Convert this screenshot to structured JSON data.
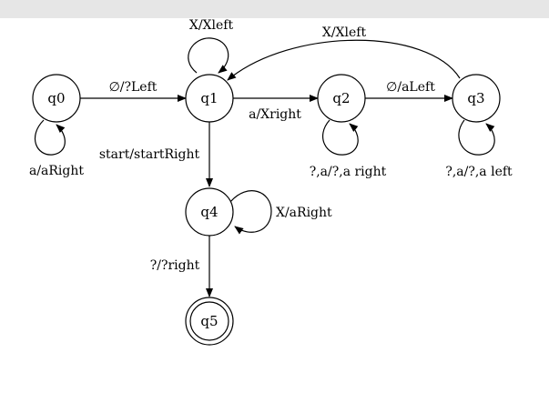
{
  "diagram": {
    "states": {
      "q0": "q0",
      "q1": "q1",
      "q2": "q2",
      "q3": "q3",
      "q4": "q4",
      "q5": "q5"
    },
    "accepting_state": "q5",
    "transitions": {
      "q0_q0": "a/aRight",
      "q0_q1": "∅/?Left",
      "q1_q1": "X/Xleft",
      "q1_q2": "a/Xright",
      "q1_q4": "start/startRight",
      "q2_q2": "?,a/?,a right",
      "q2_q3": "∅/aLeft",
      "q3_q1": "X/Xleft",
      "q3_q3": "?,a/?,a left",
      "q4_q4": "X/aRight",
      "q4_q5": "?/?right"
    }
  }
}
